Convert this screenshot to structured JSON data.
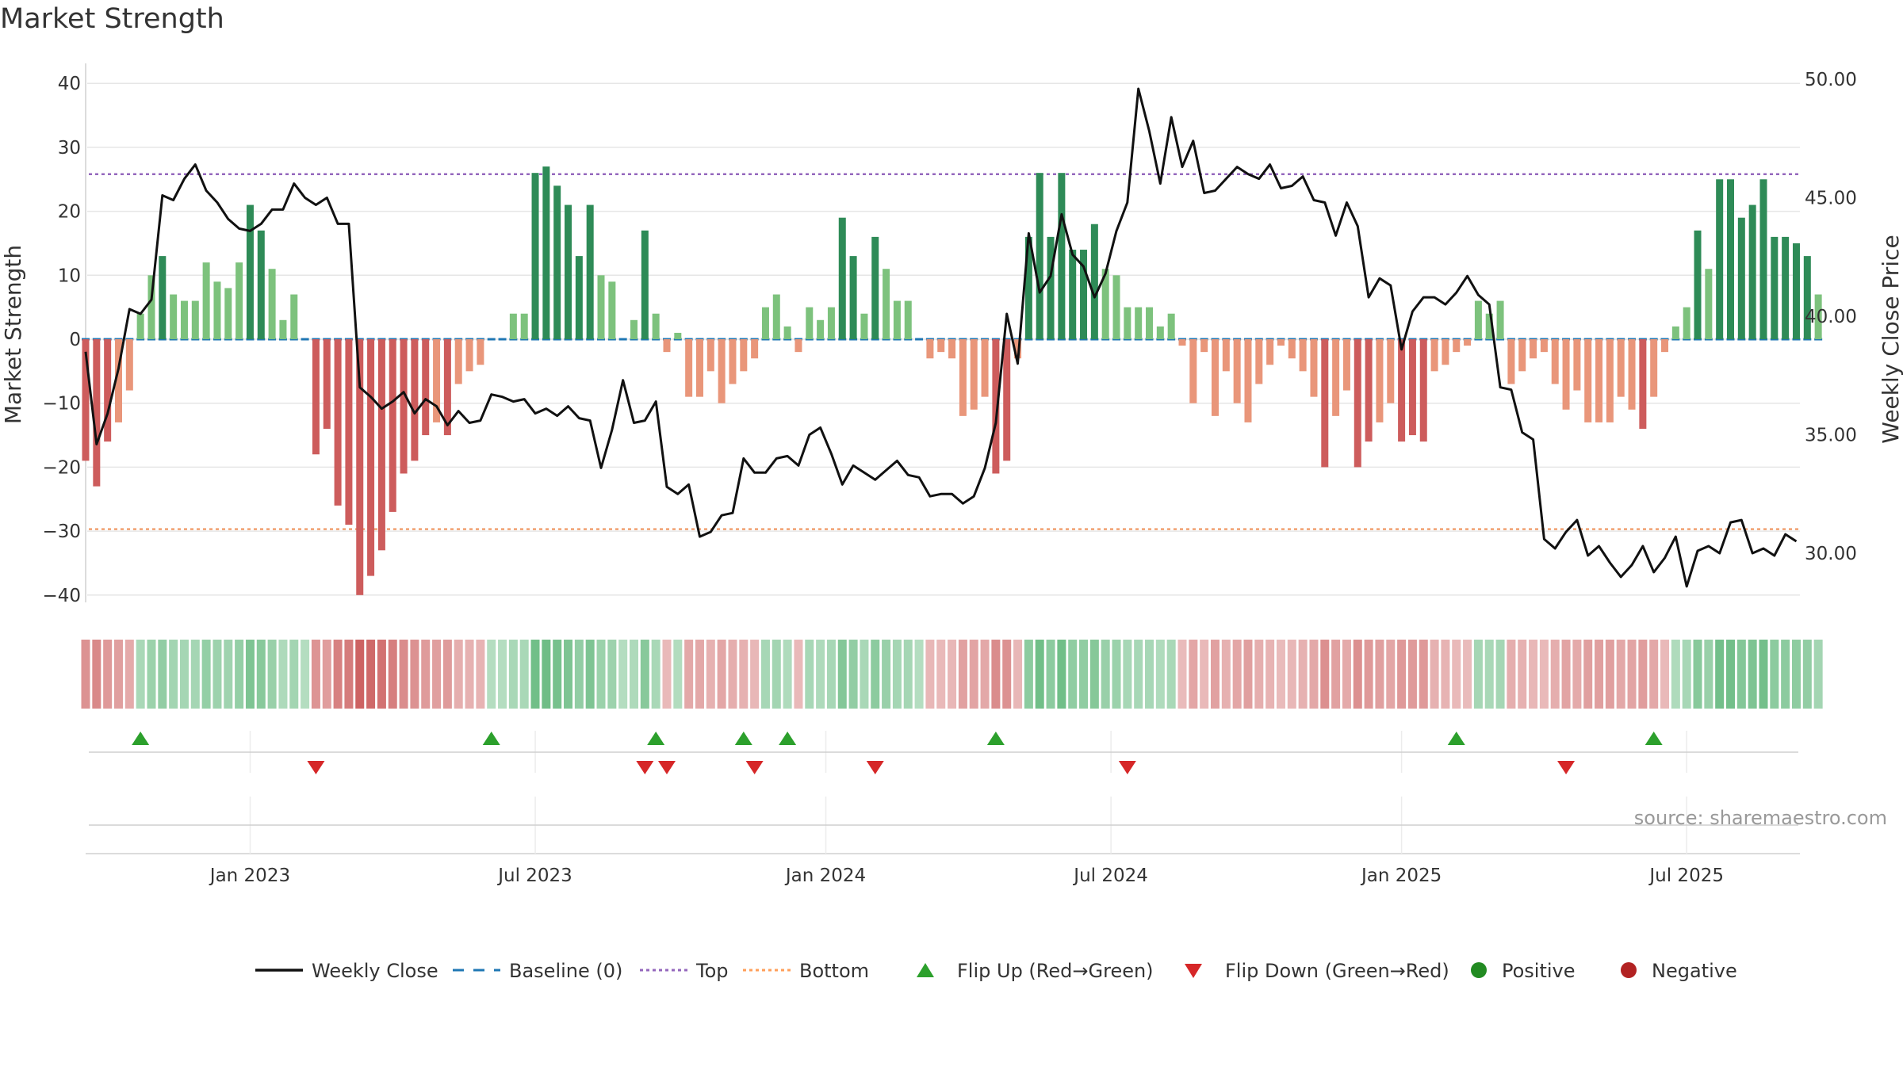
{
  "title": "Market Strength",
  "source": "source: sharemaestro.com",
  "chart_data": {
    "type": "bar",
    "title": "Market Strength",
    "ylabel_left": "Market Strength",
    "ylabel_right": "Weekly Close Price",
    "ylim_left": [
      -45,
      43
    ],
    "ylim_right": [
      26.6,
      50.6
    ],
    "yticks_left": [
      "40",
      "30",
      "20",
      "10",
      "0",
      "−10",
      "−20",
      "−30",
      "−40"
    ],
    "yticks_right": [
      "50.00",
      "45.00",
      "40.00",
      "35.00",
      "30.00"
    ],
    "x_ticks": [
      {
        "label": "Jan 2023",
        "week": 15
      },
      {
        "label": "Jul 2023",
        "week": 41
      },
      {
        "label": "Jan 2024",
        "week": 67.5
      },
      {
        "label": "Jul 2024",
        "week": 93.5
      },
      {
        "label": "Jan 2025",
        "week": 120
      },
      {
        "label": "Jul 2025",
        "week": 146
      }
    ],
    "top_level": 25.8,
    "bottom_level": -29.7,
    "strength": [
      -19,
      -23,
      -16,
      -13,
      -8,
      4,
      10,
      13,
      7,
      6,
      6,
      12,
      9,
      8,
      12,
      21,
      17,
      11,
      3,
      7,
      0,
      -18,
      -14,
      -26,
      -29,
      -40,
      -37,
      -33,
      -27,
      -21,
      -19,
      -15,
      -13,
      -15,
      -7,
      -5,
      -4,
      0,
      0,
      4,
      4,
      26,
      27,
      24,
      21,
      13,
      21,
      10,
      9,
      0,
      3,
      17,
      4,
      -2,
      1,
      -9,
      -9,
      -5,
      -10,
      -7,
      -5,
      -3,
      5,
      7,
      2,
      -2,
      5,
      3,
      5,
      19,
      13,
      4,
      16,
      11,
      6,
      6,
      0,
      -3,
      -2,
      -3,
      -12,
      -11,
      -9,
      -21,
      -19,
      -3,
      16,
      26,
      16,
      26,
      14,
      14,
      18,
      11,
      10,
      5,
      5,
      5,
      2,
      4,
      -1,
      -10,
      -2,
      -12,
      -5,
      -10,
      -13,
      -7,
      -4,
      -1,
      -3,
      -5,
      -9,
      -20,
      -12,
      -8,
      -20,
      -16,
      -13,
      -10,
      -16,
      -15,
      -16,
      -5,
      -4,
      -2,
      -1,
      6,
      4,
      6,
      -7,
      -5,
      -3,
      -2,
      -7,
      -11,
      -8,
      -13,
      -13,
      -13,
      -9,
      -11,
      -14,
      -9,
      -2,
      2,
      5,
      17,
      11,
      25,
      25,
      19,
      21,
      25,
      16,
      16,
      15,
      13,
      7
    ],
    "close": [
      38.5,
      34.6,
      35.9,
      37.8,
      40.3,
      40.1,
      40.7,
      45.1,
      44.9,
      45.8,
      46.4,
      45.3,
      44.8,
      44.1,
      43.7,
      43.6,
      43.9,
      44.5,
      44.5,
      45.6,
      45.0,
      44.7,
      45.0,
      43.9,
      43.9,
      37.0,
      36.6,
      36.1,
      36.4,
      36.8,
      35.9,
      36.5,
      36.2,
      35.4,
      36.0,
      35.5,
      35.6,
      36.7,
      36.6,
      36.4,
      36.5,
      35.9,
      36.1,
      35.8,
      36.2,
      35.7,
      35.6,
      33.6,
      35.2,
      37.3,
      35.5,
      35.6,
      36.4,
      32.8,
      32.5,
      32.9,
      30.7,
      30.9,
      31.6,
      31.7,
      34.0,
      33.4,
      33.4,
      34.0,
      34.1,
      33.7,
      35.0,
      35.3,
      34.2,
      32.9,
      33.7,
      33.4,
      33.1,
      33.5,
      33.9,
      33.3,
      33.2,
      32.4,
      32.5,
      32.5,
      32.1,
      32.4,
      33.6,
      35.5,
      40.1,
      38.0,
      43.5,
      41.0,
      41.7,
      44.3,
      42.6,
      42.1,
      40.8,
      41.8,
      43.6,
      44.8,
      49.6,
      47.8,
      45.6,
      48.4,
      46.3,
      47.4,
      45.2,
      45.3,
      45.8,
      46.3,
      46.0,
      45.8,
      46.4,
      45.4,
      45.5,
      45.9,
      44.9,
      44.8,
      43.4,
      44.8,
      43.8,
      40.8,
      41.6,
      41.3,
      38.6,
      40.2,
      40.8,
      40.8,
      40.5,
      41.0,
      41.7,
      40.9,
      40.5,
      37.0,
      36.9,
      35.1,
      34.8,
      30.6,
      30.2,
      30.9,
      31.4,
      29.9,
      30.3,
      29.6,
      29.0,
      29.5,
      30.3,
      29.2,
      29.8,
      30.7,
      28.6,
      30.1,
      30.3,
      30.0,
      31.3,
      31.4,
      30.0,
      30.2,
      29.9,
      30.8,
      30.5
    ],
    "flip_up_weeks": [
      5,
      37,
      52,
      60,
      64,
      83,
      125,
      143
    ],
    "flip_down_weeks": [
      21,
      51,
      53,
      61,
      72,
      95,
      135
    ]
  },
  "legend": [
    {
      "key": "weekly-close",
      "label": "Weekly Close",
      "color": "#111111",
      "symbol": "line"
    },
    {
      "key": "baseline",
      "label": "Baseline (0)",
      "color": "#1f77b4",
      "symbol": "dash"
    },
    {
      "key": "top",
      "label": "Top",
      "color": "#9467bd",
      "symbol": "dot"
    },
    {
      "key": "bottom",
      "label": "Bottom",
      "color": "#ff9f5a",
      "symbol": "dot"
    },
    {
      "key": "flip-up",
      "label": "Flip Up (Red→Green)",
      "color": "#2ca02c",
      "symbol": "triangle-up"
    },
    {
      "key": "flip-down",
      "label": "Flip Down (Green→Red)",
      "color": "#d62728",
      "symbol": "triangle-down"
    },
    {
      "key": "positive",
      "label": "Positive",
      "color": "#228b22",
      "symbol": "circle"
    },
    {
      "key": "negative",
      "label": "Negative",
      "color": "#b22222",
      "symbol": "circle"
    }
  ],
  "colors": {
    "pos_strong": "#2e8b57",
    "pos_weak": "#7dc27d",
    "neg_strong": "#cd5c5c",
    "neg_weak": "#e9967a",
    "grid": "#e6e6e6"
  }
}
